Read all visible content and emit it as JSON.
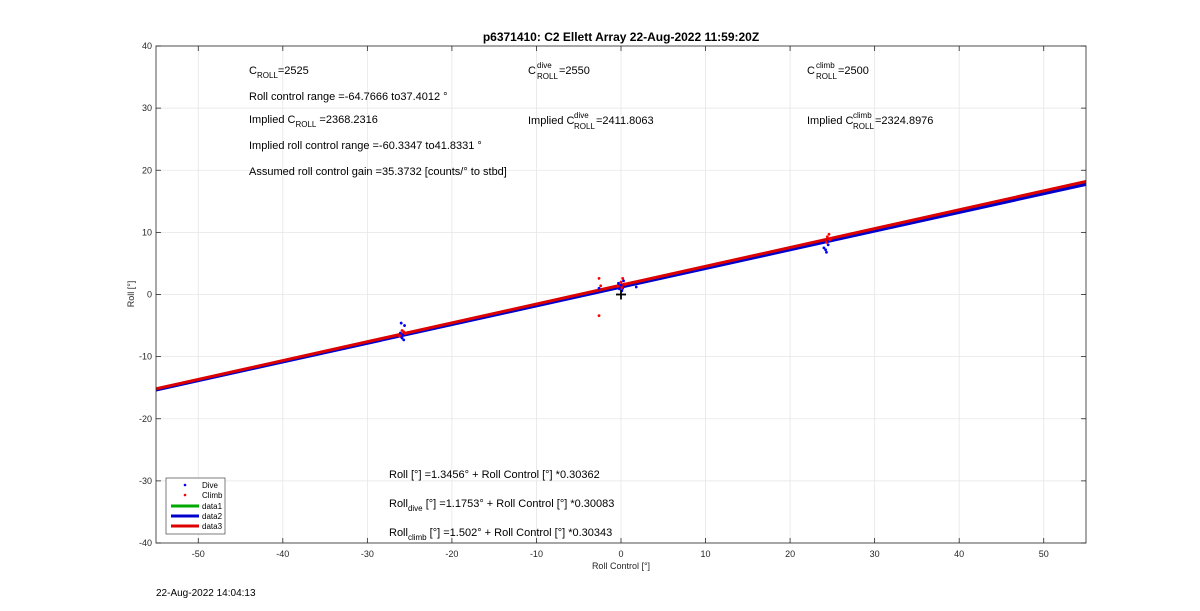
{
  "chart_data": {
    "type": "scatter",
    "title": "p6371410: C2 Ellett Array 22-Aug-2022 11:59:20Z",
    "xlabel": "Roll Control [°]",
    "ylabel": "Roll [°]",
    "xlim": [
      -55,
      55
    ],
    "ylim": [
      -40,
      40
    ],
    "xticks": [
      -50,
      -40,
      -30,
      -20,
      -10,
      0,
      10,
      20,
      30,
      40,
      50
    ],
    "yticks": [
      -40,
      -30,
      -20,
      -10,
      0,
      10,
      20,
      30,
      40
    ],
    "grid": true,
    "legend_position": "bottom-left",
    "series": [
      {
        "name": "Dive",
        "kind": "points",
        "color": "#0000ff",
        "points": [
          [
            -25.8,
            -6.5
          ],
          [
            -25.9,
            -7.0
          ],
          [
            -26.0,
            -6.8
          ],
          [
            -25.7,
            -7.3
          ],
          [
            -26.1,
            -6.2
          ],
          [
            -25.6,
            -5.0
          ],
          [
            -26.0,
            -4.6
          ],
          [
            0.0,
            1.5
          ],
          [
            0.2,
            1.0
          ],
          [
            -0.3,
            1.8
          ],
          [
            0.3,
            2.2
          ],
          [
            -0.2,
            0.9
          ],
          [
            0.1,
            0.6
          ],
          [
            1.8,
            1.2
          ],
          [
            -2.6,
            1.0
          ],
          [
            24.2,
            7.2
          ],
          [
            24.3,
            6.8
          ],
          [
            24.5,
            8.0
          ],
          [
            24.0,
            7.5
          ],
          [
            24.6,
            8.6
          ]
        ]
      },
      {
        "name": "Climb",
        "kind": "points",
        "color": "#ff0000",
        "points": [
          [
            -25.7,
            -6.0
          ],
          [
            -26.2,
            -6.7
          ],
          [
            -25.9,
            -5.8
          ],
          [
            -25.5,
            -6.3
          ],
          [
            -2.6,
            2.6
          ],
          [
            -2.6,
            -3.4
          ],
          [
            -2.4,
            1.4
          ],
          [
            0.2,
            2.6
          ],
          [
            0.0,
            2.0
          ],
          [
            0.5,
            1.7
          ],
          [
            -0.4,
            1.3
          ],
          [
            0.1,
            1.1
          ],
          [
            24.4,
            9.3
          ],
          [
            24.6,
            9.7
          ],
          [
            24.8,
            9.0
          ],
          [
            24.7,
            8.8
          ],
          [
            24.3,
            8.4
          ]
        ]
      },
      {
        "name": "data1",
        "kind": "line",
        "color": "#00aa00",
        "intercept": 1.3456,
        "slope": 0.30362
      },
      {
        "name": "data2",
        "kind": "line",
        "color": "#0000cc",
        "intercept": 1.1753,
        "slope": 0.30083
      },
      {
        "name": "data3",
        "kind": "line",
        "color": "#dd0000",
        "intercept": 1.502,
        "slope": 0.30343
      }
    ],
    "marker": {
      "x": 0,
      "y": 0,
      "symbol": "+"
    },
    "annotations": {
      "c_roll": {
        "base": "C",
        "sub": "ROLL",
        "value": "=2525"
      },
      "roll_range": "Roll control range =-64.7666 to37.4012 °",
      "implied_c_roll": {
        "pre": "Implied C",
        "sub": "ROLL",
        "value": " =2368.2316"
      },
      "implied_range": "Implied roll control range =-60.3347 to41.8331 °",
      "gain": "Assumed roll control gain =35.3732 [counts/° to stbd]",
      "c_dive": {
        "base": "C",
        "sup": "dive",
        "sub": "ROLL",
        "value": " =2550"
      },
      "implied_c_dive": {
        "pre": "Implied C",
        "sup": "dive",
        "sub": "ROLL",
        "value": " =2411.8063"
      },
      "c_climb": {
        "base": "C",
        "sup": "climb",
        "sub": "ROLL",
        "value": " =2500"
      },
      "implied_c_climb": {
        "pre": "Implied C",
        "sup": "climb",
        "sub": "ROLL",
        "value": " =2324.8976"
      },
      "fit_all": "Roll [°] =1.3456° + Roll Control [°] *0.30362",
      "fit_dive": {
        "pre": "Roll",
        "sub": "dive",
        "post": " [°] =1.1753° + Roll Control [°] *0.30083"
      },
      "fit_climb": {
        "pre": "Roll",
        "sub": "climb",
        "post": " [°] =1.502° + Roll Control [°] *0.30343"
      }
    }
  },
  "footer_timestamp": "22-Aug-2022 14:04:13"
}
